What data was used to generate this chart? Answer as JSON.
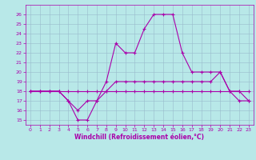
{
  "xlabel": "Windchill (Refroidissement éolien,°C)",
  "background_color": "#b8e8e8",
  "grid_color": "#99bbcc",
  "line_color": "#aa00aa",
  "xlim": [
    -0.5,
    23.5
  ],
  "ylim": [
    14.5,
    27.0
  ],
  "xticks": [
    0,
    1,
    2,
    3,
    4,
    5,
    6,
    7,
    8,
    9,
    10,
    11,
    12,
    13,
    14,
    15,
    16,
    17,
    18,
    19,
    20,
    21,
    22,
    23
  ],
  "yticks": [
    15,
    16,
    17,
    18,
    19,
    20,
    21,
    22,
    23,
    24,
    25,
    26
  ],
  "line1_x": [
    0,
    1,
    2,
    3,
    4,
    5,
    6,
    7,
    8,
    9,
    10,
    11,
    12,
    13,
    14,
    15,
    16,
    17,
    18,
    19,
    20,
    21,
    22,
    23
  ],
  "line1_y": [
    18,
    18,
    18,
    18,
    17,
    15,
    15,
    17,
    19,
    23,
    22,
    22,
    24.5,
    26,
    26,
    26,
    22,
    20,
    20,
    20,
    20,
    18,
    18,
    17
  ],
  "line2_x": [
    0,
    1,
    2,
    3,
    4,
    5,
    6,
    7,
    8,
    9,
    10,
    11,
    12,
    13,
    14,
    15,
    16,
    17,
    18,
    19,
    20,
    21,
    22,
    23
  ],
  "line2_y": [
    18,
    18,
    18,
    18,
    18,
    18,
    18,
    18,
    18,
    18,
    18,
    18,
    18,
    18,
    18,
    18,
    18,
    18,
    18,
    18,
    18,
    18,
    18,
    18
  ],
  "line3_x": [
    0,
    1,
    2,
    3,
    4,
    5,
    6,
    7,
    8,
    9,
    10,
    11,
    12,
    13,
    14,
    15,
    16,
    17,
    18,
    19,
    20,
    21,
    22,
    23
  ],
  "line3_y": [
    18,
    18,
    18,
    18,
    17,
    16,
    17,
    17,
    18,
    19,
    19,
    19,
    19,
    19,
    19,
    19,
    19,
    19,
    19,
    19,
    20,
    18,
    17,
    17
  ],
  "marker_size": 3,
  "line_width": 0.8,
  "tick_fontsize": 4.5,
  "xlabel_fontsize": 5.5
}
